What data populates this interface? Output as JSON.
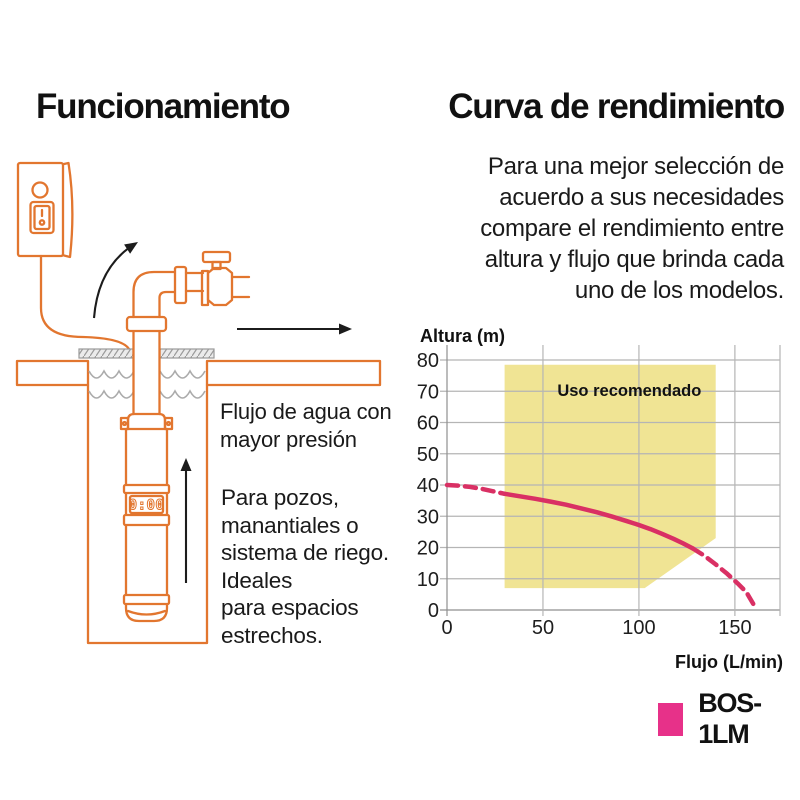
{
  "left": {
    "heading": "Funcionamiento",
    "caption1": "Flujo de agua con\nmayor presión",
    "caption2": "Para pozos,\nmanantiales o\nsistema de riego.\nIdeales\npara espacios\nestrechos.",
    "pump_display": "0:00",
    "colors": {
      "outline_orange": "#e2762f",
      "arrow_black": "#1c1c1c",
      "water_gray": "#ababab"
    }
  },
  "right": {
    "heading": "Curva de rendimiento",
    "paragraph": "Para una mejor selección de\nacuerdo a sus necesidades\ncompare el rendimiento entre\naltura y flujo que brinda cada\nuno de los modelos.",
    "legend": {
      "label": "BOS-1LM",
      "color": "#e73189"
    }
  },
  "chart_data": {
    "type": "line",
    "title": "",
    "xlabel": "Flujo (L/min)",
    "ylabel": "Altura (m)",
    "xlim": [
      0,
      173.5
    ],
    "ylim": [
      0,
      80
    ],
    "xticks": [
      0,
      50,
      100,
      150
    ],
    "yticks": [
      0,
      10,
      20,
      30,
      40,
      50,
      60,
      70,
      80
    ],
    "grid": true,
    "grid_color": "#b5b5b5",
    "axis_color": "#8f8f8f",
    "recommended_region": {
      "label": "Uso recomendado",
      "fill": "#f0e494",
      "polygon": [
        [
          30,
          78.5
        ],
        [
          140,
          78.5
        ],
        [
          140,
          23
        ],
        [
          103,
          7
        ],
        [
          30,
          7
        ]
      ],
      "label_anchor": [
        95,
        68.5
      ]
    },
    "series": [
      {
        "name": "BOS-1LM",
        "color": "#d93064",
        "segments": [
          {
            "style": "dashed",
            "points": [
              [
                0,
                40
              ],
              [
                6,
                39.8
              ],
              [
                12,
                39.4
              ],
              [
                18,
                38.8
              ],
              [
                24,
                38
              ],
              [
                30,
                37.2
              ]
            ]
          },
          {
            "style": "solid",
            "points": [
              [
                30,
                37.2
              ],
              [
                38,
                36.4
              ],
              [
                46,
                35.6
              ],
              [
                54,
                34.7
              ],
              [
                62,
                33.7
              ],
              [
                70,
                32.5
              ],
              [
                78,
                31.3
              ],
              [
                86,
                29.9
              ],
              [
                94,
                28.4
              ],
              [
                100,
                27.2
              ],
              [
                106,
                25.9
              ],
              [
                112,
                24.4
              ],
              [
                118,
                22.8
              ],
              [
                123,
                21.3
              ],
              [
                128,
                19.7
              ]
            ]
          },
          {
            "style": "dashed",
            "points": [
              [
                128,
                19.7
              ],
              [
                134,
                17.4
              ],
              [
                140,
                14.6
              ],
              [
                146,
                11.6
              ],
              [
                152,
                8.2
              ],
              [
                156,
                5.7
              ],
              [
                160,
                1.5
              ]
            ]
          }
        ]
      }
    ]
  }
}
